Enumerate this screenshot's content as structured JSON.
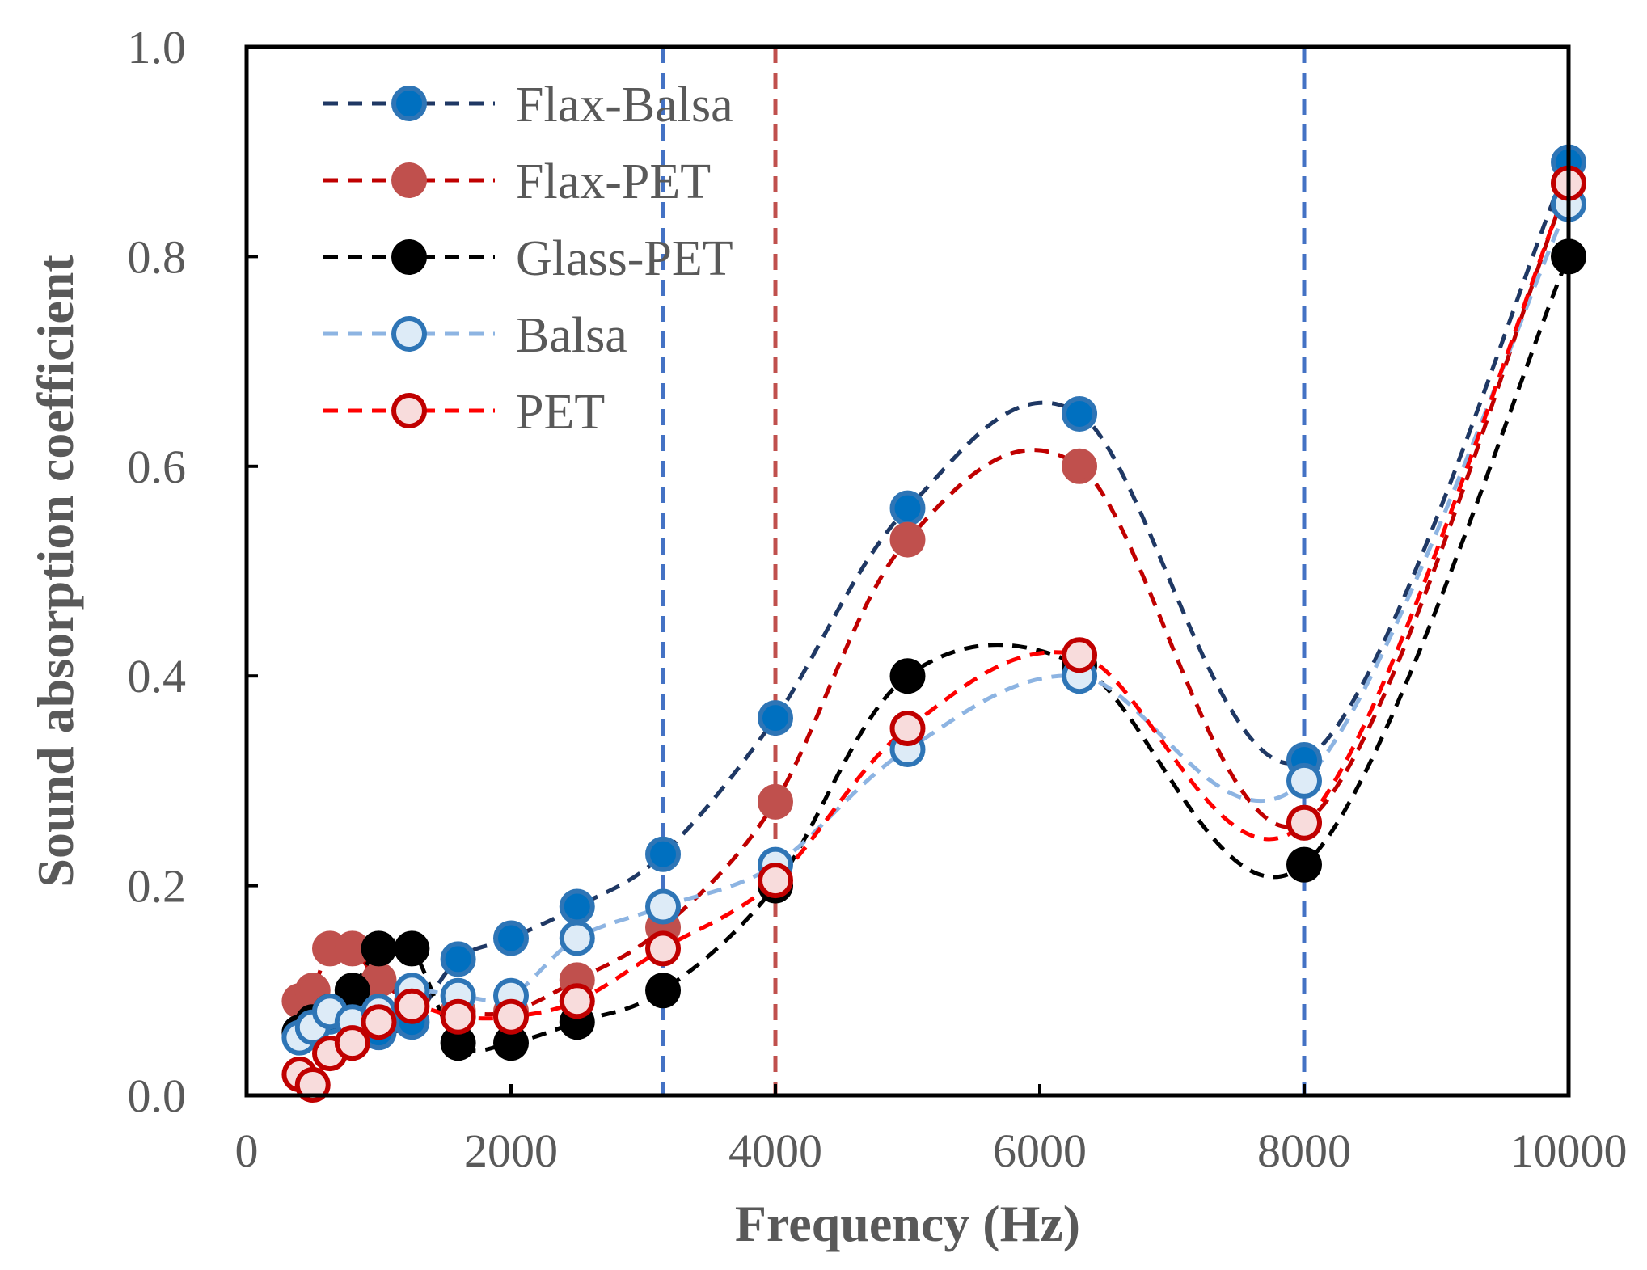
{
  "chart_data": {
    "type": "line",
    "title": "",
    "xlabel": "Frequency (Hz)",
    "ylabel": "Sound absorption coefficient",
    "xlim": [
      0,
      10000
    ],
    "ylim": [
      0,
      1.0
    ],
    "xticks": [
      0,
      2000,
      4000,
      6000,
      8000,
      10000
    ],
    "xtick_labels": [
      "0",
      "2000",
      "4000",
      "6000",
      "8000",
      "10000"
    ],
    "yticks": [
      0,
      0.2,
      0.4,
      0.6,
      0.8,
      1.0
    ],
    "ytick_labels": [
      "0.0",
      "0.2",
      "0.4",
      "0.6",
      "0.8",
      "1.0"
    ],
    "grid": false,
    "legend_position": "top-left",
    "reference_lines": [
      {
        "x": 3150,
        "color": "#4472c4"
      },
      {
        "x": 4000,
        "color": "#c0504d"
      },
      {
        "x": 8000,
        "color": "#4472c4"
      }
    ],
    "series": [
      {
        "name": "Flax-Balsa",
        "line_color": "#1f3864",
        "marker_fill": "#0070c0",
        "marker_stroke": "#2e75b6",
        "x": [
          400,
          500,
          630,
          800,
          1000,
          1250,
          1600,
          2000,
          2500,
          3150,
          4000,
          5000,
          6300,
          8000,
          10000
        ],
        "y": [
          0.06,
          0.065,
          0.075,
          0.07,
          0.06,
          0.07,
          0.13,
          0.15,
          0.18,
          0.23,
          0.36,
          0.56,
          0.65,
          0.32,
          0.89
        ]
      },
      {
        "name": "Flax-PET",
        "line_color": "#c00000",
        "marker_fill": "#c0504d",
        "marker_stroke": "#c0504d",
        "x": [
          400,
          500,
          630,
          800,
          1000,
          1250,
          1600,
          2000,
          2500,
          3150,
          4000,
          5000,
          6300,
          8000,
          10000
        ],
        "y": [
          0.09,
          0.1,
          0.14,
          0.14,
          0.11,
          0.09,
          0.08,
          0.08,
          0.11,
          0.16,
          0.28,
          0.53,
          0.6,
          0.26,
          0.87
        ]
      },
      {
        "name": "Glass-PET",
        "line_color": "#000000",
        "marker_fill": "#000000",
        "marker_stroke": "#000000",
        "x": [
          400,
          500,
          630,
          800,
          1000,
          1250,
          1600,
          2000,
          2500,
          3150,
          4000,
          5000,
          6300,
          8000,
          10000
        ],
        "y": [
          0.06,
          0.07,
          0.08,
          0.1,
          0.14,
          0.14,
          0.05,
          0.05,
          0.07,
          0.1,
          0.2,
          0.4,
          0.41,
          0.22,
          0.8
        ]
      },
      {
        "name": "Balsa",
        "line_color": "#8db4e2",
        "marker_fill": "#ddebf7",
        "marker_stroke": "#2e75b6",
        "x": [
          400,
          500,
          630,
          800,
          1000,
          1250,
          1600,
          2000,
          2500,
          3150,
          4000,
          5000,
          6300,
          8000,
          10000
        ],
        "y": [
          0.055,
          0.065,
          0.08,
          0.07,
          0.08,
          0.1,
          0.095,
          0.095,
          0.15,
          0.18,
          0.22,
          0.33,
          0.4,
          0.3,
          0.85
        ]
      },
      {
        "name": "PET",
        "line_color": "#ff0000",
        "marker_fill": "#f8dcdc",
        "marker_stroke": "#c00000",
        "x": [
          400,
          500,
          630,
          800,
          1000,
          1250,
          1600,
          2000,
          2500,
          3150,
          4000,
          5000,
          6300,
          8000,
          10000
        ],
        "y": [
          0.02,
          0.01,
          0.04,
          0.05,
          0.07,
          0.085,
          0.075,
          0.075,
          0.09,
          0.14,
          0.205,
          0.35,
          0.42,
          0.26,
          0.87
        ]
      }
    ]
  }
}
